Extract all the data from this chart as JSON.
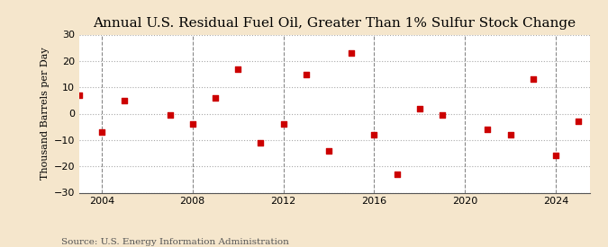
{
  "title": "Annual U.S. Residual Fuel Oil, Greater Than 1% Sulfur Stock Change",
  "ylabel": "Thousand Barrels per Day",
  "source": "Source: U.S. Energy Information Administration",
  "background_color": "#f5e6cc",
  "plot_bg_color": "#ffffff",
  "marker_color": "#cc0000",
  "years": [
    2003,
    2004,
    2005,
    2007,
    2008,
    2009,
    2010,
    2011,
    2012,
    2013,
    2014,
    2015,
    2016,
    2017,
    2018,
    2019,
    2021,
    2022,
    2023,
    2024,
    2025
  ],
  "values": [
    7,
    -7,
    5,
    -0.5,
    -4,
    6,
    17,
    -11,
    -4,
    15,
    -14,
    23,
    -8,
    -23,
    2,
    -0.5,
    -6,
    -8,
    13,
    -16,
    -3
  ],
  "ylim": [
    -30,
    30
  ],
  "yticks": [
    -30,
    -20,
    -10,
    0,
    10,
    20,
    30
  ],
  "xticks": [
    2004,
    2008,
    2012,
    2016,
    2020,
    2024
  ],
  "xlim": [
    2003,
    2025.5
  ],
  "h_grid_color": "#aaaaaa",
  "v_grid_color": "#888888",
  "title_fontsize": 11,
  "label_fontsize": 8,
  "tick_fontsize": 8,
  "source_fontsize": 7.5
}
